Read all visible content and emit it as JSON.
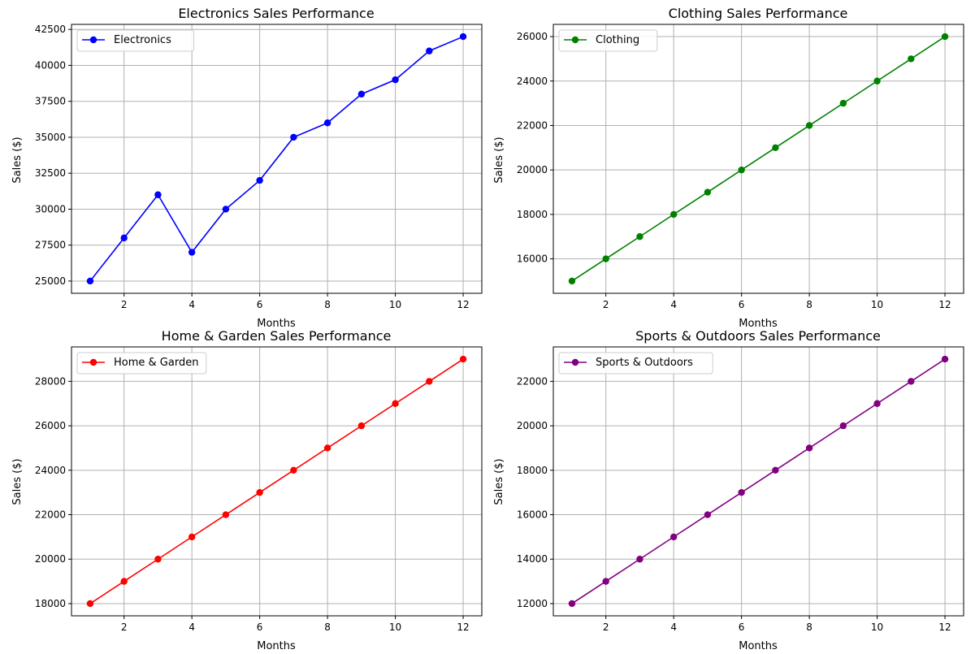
{
  "colors": {
    "background": "#ffffff",
    "grid": "#b0b0b0",
    "axis": "#000000"
  },
  "chart_data": [
    {
      "type": "line",
      "title": "Electronics Sales Performance",
      "xlabel": "Months",
      "ylabel": "Sales ($)",
      "x": [
        1,
        2,
        3,
        4,
        5,
        6,
        7,
        8,
        9,
        10,
        11,
        12
      ],
      "xlim": [
        0.45,
        12.55
      ],
      "ylim": [
        24150,
        42850
      ],
      "xticks": [
        2,
        4,
        6,
        8,
        10,
        12
      ],
      "yticks": [
        25000,
        27500,
        30000,
        32500,
        35000,
        37500,
        40000,
        42500
      ],
      "grid": true,
      "legend_position": "top-left",
      "series": [
        {
          "name": "Electronics",
          "color": "#0000ff",
          "marker": "circle",
          "values": [
            25000,
            28000,
            31000,
            27000,
            30000,
            32000,
            35000,
            36000,
            38000,
            39000,
            41000,
            42000
          ]
        }
      ]
    },
    {
      "type": "line",
      "title": "Clothing Sales Performance",
      "xlabel": "Months",
      "ylabel": "Sales ($)",
      "x": [
        1,
        2,
        3,
        4,
        5,
        6,
        7,
        8,
        9,
        10,
        11,
        12
      ],
      "xlim": [
        0.45,
        12.55
      ],
      "ylim": [
        14450,
        26550
      ],
      "xticks": [
        2,
        4,
        6,
        8,
        10,
        12
      ],
      "yticks": [
        16000,
        18000,
        20000,
        22000,
        24000,
        26000
      ],
      "grid": true,
      "legend_position": "top-left",
      "series": [
        {
          "name": "Clothing",
          "color": "#008000",
          "marker": "circle",
          "values": [
            15000,
            16000,
            17000,
            18000,
            19000,
            20000,
            21000,
            22000,
            23000,
            24000,
            25000,
            26000
          ]
        }
      ]
    },
    {
      "type": "line",
      "title": "Home & Garden Sales Performance",
      "xlabel": "Months",
      "ylabel": "Sales ($)",
      "x": [
        1,
        2,
        3,
        4,
        5,
        6,
        7,
        8,
        9,
        10,
        11,
        12
      ],
      "xlim": [
        0.45,
        12.55
      ],
      "ylim": [
        17450,
        29550
      ],
      "xticks": [
        2,
        4,
        6,
        8,
        10,
        12
      ],
      "yticks": [
        18000,
        20000,
        22000,
        24000,
        26000,
        28000
      ],
      "grid": true,
      "legend_position": "top-left",
      "series": [
        {
          "name": "Home & Garden",
          "color": "#ff0000",
          "marker": "circle",
          "values": [
            18000,
            19000,
            20000,
            21000,
            22000,
            23000,
            24000,
            25000,
            26000,
            27000,
            28000,
            29000
          ]
        }
      ]
    },
    {
      "type": "line",
      "title": "Sports & Outdoors Sales Performance",
      "xlabel": "Months",
      "ylabel": "Sales ($)",
      "x": [
        1,
        2,
        3,
        4,
        5,
        6,
        7,
        8,
        9,
        10,
        11,
        12
      ],
      "xlim": [
        0.45,
        12.55
      ],
      "ylim": [
        11450,
        23550
      ],
      "xticks": [
        2,
        4,
        6,
        8,
        10,
        12
      ],
      "yticks": [
        12000,
        14000,
        16000,
        18000,
        20000,
        22000
      ],
      "grid": true,
      "legend_position": "top-left",
      "series": [
        {
          "name": "Sports & Outdoors",
          "color": "#800080",
          "marker": "circle",
          "values": [
            12000,
            13000,
            14000,
            15000,
            16000,
            17000,
            18000,
            19000,
            20000,
            21000,
            22000,
            23000
          ]
        }
      ]
    }
  ]
}
